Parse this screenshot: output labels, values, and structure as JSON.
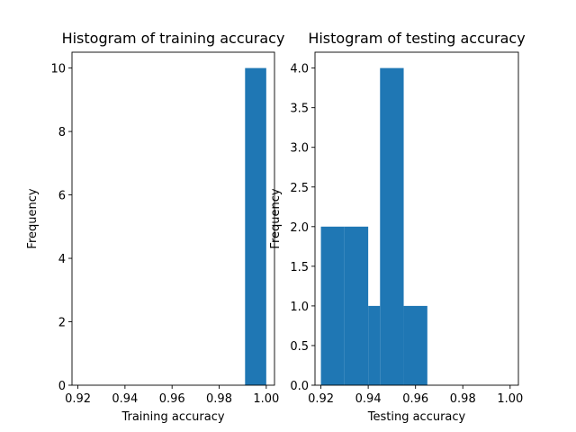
{
  "chart_data": [
    {
      "type": "bar",
      "title": "Histogram of training accuracy",
      "xlabel": "Training accuracy",
      "ylabel": "Frequency",
      "xlim": [
        0.9175,
        1.0035
      ],
      "ylim": [
        0,
        10.5
      ],
      "xticks": [
        0.92,
        0.94,
        0.96,
        0.98,
        1.0
      ],
      "xtick_labels": [
        "0.92",
        "0.94",
        "0.96",
        "0.98",
        "1.00"
      ],
      "yticks": [
        0,
        2,
        4,
        6,
        8,
        10
      ],
      "ytick_labels": [
        "0",
        "2",
        "4",
        "6",
        "8",
        "10"
      ],
      "bins": [
        {
          "x0": 0.991,
          "x1": 1.0,
          "count": 10
        }
      ],
      "bar_color": "#1f77b4",
      "grid": false
    },
    {
      "type": "bar",
      "title": "Histogram of testing accuracy",
      "xlabel": "Testing accuracy",
      "ylabel": "Frequency",
      "xlim": [
        0.9175,
        1.0035
      ],
      "ylim": [
        0,
        4.2
      ],
      "xticks": [
        0.92,
        0.94,
        0.96,
        0.98,
        1.0
      ],
      "xtick_labels": [
        "0.92",
        "0.94",
        "0.96",
        "0.98",
        "1.00"
      ],
      "yticks": [
        0,
        0.5,
        1.0,
        1.5,
        2.0,
        2.5,
        3.0,
        3.5,
        4.0
      ],
      "ytick_labels": [
        "0.0",
        "0.5",
        "1.0",
        "1.5",
        "2.0",
        "2.5",
        "3.0",
        "3.5",
        "4.0"
      ],
      "bins": [
        {
          "x0": 0.92,
          "x1": 0.93,
          "count": 2
        },
        {
          "x0": 0.93,
          "x1": 0.94,
          "count": 2
        },
        {
          "x0": 0.94,
          "x1": 0.945,
          "count": 1
        },
        {
          "x0": 0.945,
          "x1": 0.955,
          "count": 4
        },
        {
          "x0": 0.955,
          "x1": 0.965,
          "count": 1
        }
      ],
      "bar_color": "#1f77b4",
      "grid": false
    }
  ]
}
